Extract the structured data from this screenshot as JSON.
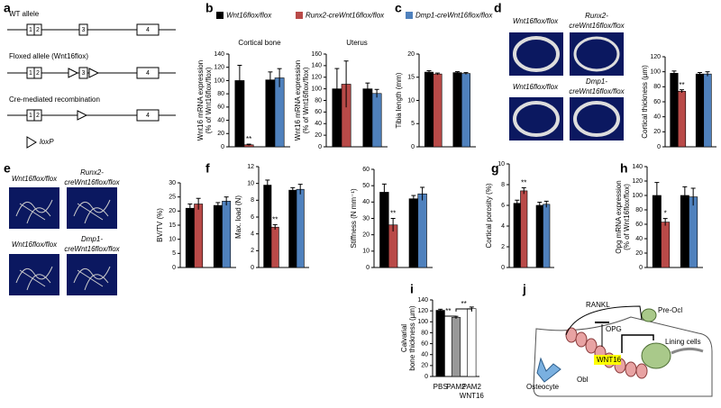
{
  "panels": [
    "a",
    "b",
    "c",
    "d",
    "e",
    "f",
    "g",
    "h",
    "i",
    "j"
  ],
  "legend": [
    {
      "name": "Wnt16flox/flox",
      "color": "#000000"
    },
    {
      "name": "Runx2-creWnt16flox/flox",
      "color": "#b94a48"
    },
    {
      "name": "Dmp1-creWnt16flox/flox",
      "color": "#4f81bd"
    }
  ],
  "allele_diagram": {
    "rows": [
      "WT allele",
      "Floxed allele (Wnt16flox)",
      "Cre-mediated recombination"
    ],
    "exons": [
      "1",
      "2",
      "3",
      "4"
    ],
    "legend": "loxP"
  },
  "images": {
    "d": [
      "Wnt16flox/flox",
      "Runx2-",
      "creWnt16flox/flox",
      "Wnt16flox/flox",
      "Dmp1-",
      "creWnt16flox/flox"
    ],
    "e": [
      "Wnt16flox/flox",
      "Runx2-",
      "creWnt16flox/flox",
      "Wnt16flox/flox",
      "Dmp1-",
      "creWnt16flox/flox"
    ]
  },
  "mechanism": {
    "rankl": "RANKL",
    "opg": "OPG",
    "pre_ocl": "Pre-Ocl",
    "lining": "Lining cells",
    "osteocyte": "Osteocyte",
    "obl": "Obl",
    "wnt16": "WNT16"
  },
  "chart_data": [
    {
      "type": "bar",
      "title": "Cortical bone",
      "ylabel": [
        "Wnt16 mRNA expression",
        "(% of Wnt16flox/flox)"
      ],
      "categories": [
        null,
        null
      ],
      "ylim": [
        0,
        140
      ],
      "yticks": [
        0,
        20,
        40,
        60,
        80,
        100,
        120,
        140
      ],
      "series": [
        {
          "values": [
            100,
            101
          ],
          "errors": [
            23,
            12
          ],
          "significance": [
            null,
            null
          ]
        },
        {
          "values": [
            3,
            null
          ],
          "errors": [
            1,
            null
          ],
          "significance": [
            "**",
            null
          ]
        },
        {
          "values": [
            null,
            104
          ],
          "errors": [
            null,
            14
          ],
          "significance": [
            null,
            null
          ]
        }
      ]
    },
    {
      "type": "bar",
      "title": "Uterus",
      "ylabel": [
        "Wnt16 mRNA expression",
        "(% of Wnt16flox/flox)"
      ],
      "categories": [
        null,
        null
      ],
      "ylim": [
        0,
        160
      ],
      "yticks": [
        0,
        20,
        40,
        60,
        80,
        100,
        120,
        140,
        160
      ],
      "series": [
        {
          "values": [
            100,
            100
          ],
          "errors": [
            35,
            10
          ],
          "significance": [
            null,
            null
          ]
        },
        {
          "values": [
            108,
            null
          ],
          "errors": [
            40,
            null
          ],
          "significance": [
            null,
            null
          ]
        },
        {
          "values": [
            null,
            92
          ],
          "errors": [
            null,
            7
          ],
          "significance": [
            null,
            null
          ]
        }
      ]
    },
    {
      "type": "bar",
      "ylabel": [
        "Tibia length (mm)"
      ],
      "categories": [
        null,
        null
      ],
      "ylim": [
        0,
        20
      ],
      "yticks": [
        0,
        5,
        10,
        15,
        20
      ],
      "series": [
        {
          "values": [
            16.1,
            16.0
          ],
          "errors": [
            0.3,
            0.2
          ],
          "significance": [
            null,
            null
          ]
        },
        {
          "values": [
            15.7,
            null
          ],
          "errors": [
            0.2,
            null
          ],
          "significance": [
            null,
            null
          ]
        },
        {
          "values": [
            null,
            15.8
          ],
          "errors": [
            null,
            0.2
          ],
          "significance": [
            null,
            null
          ]
        }
      ]
    },
    {
      "type": "bar",
      "ylabel": [
        "Cortical thickness (µm)"
      ],
      "categories": [
        null,
        null
      ],
      "ylim": [
        0,
        120
      ],
      "yticks": [
        0,
        20,
        40,
        60,
        80,
        100,
        120
      ],
      "series": [
        {
          "values": [
            98,
            97
          ],
          "errors": [
            3,
            2
          ],
          "significance": [
            null,
            null
          ]
        },
        {
          "values": [
            74,
            null
          ],
          "errors": [
            2,
            null
          ],
          "significance": [
            "**",
            null
          ]
        },
        {
          "values": [
            null,
            97
          ],
          "errors": [
            null,
            3
          ],
          "significance": [
            null,
            null
          ]
        }
      ]
    },
    {
      "type": "bar",
      "ylabel": [
        "BV/TV (%)"
      ],
      "categories": [
        null,
        null
      ],
      "ylim": [
        0,
        30
      ],
      "yticks": [
        0,
        5,
        10,
        15,
        20,
        25,
        30
      ],
      "series": [
        {
          "values": [
            21,
            22
          ],
          "errors": [
            1.5,
            1
          ],
          "significance": [
            null,
            null
          ]
        },
        {
          "values": [
            22.5,
            null
          ],
          "errors": [
            2,
            null
          ],
          "significance": [
            null,
            null
          ]
        },
        {
          "values": [
            null,
            23.5
          ],
          "errors": [
            null,
            1.5
          ],
          "significance": [
            null,
            null
          ]
        }
      ]
    },
    {
      "type": "bar",
      "ylabel": [
        "Max. load (N)"
      ],
      "categories": [
        null,
        null
      ],
      "ylim": [
        0,
        12
      ],
      "yticks": [
        0,
        2,
        4,
        6,
        8,
        10,
        12
      ],
      "series": [
        {
          "values": [
            9.8,
            9.2
          ],
          "errors": [
            0.6,
            0.3
          ],
          "significance": [
            null,
            null
          ]
        },
        {
          "values": [
            4.8,
            null
          ],
          "errors": [
            0.3,
            null
          ],
          "significance": [
            "**",
            null
          ]
        },
        {
          "values": [
            null,
            9.3
          ],
          "errors": [
            null,
            0.6
          ],
          "significance": [
            null,
            null
          ]
        }
      ]
    },
    {
      "type": "bar",
      "ylabel": [
        "Stiffness (N mm⁻¹)"
      ],
      "categories": [
        null,
        null
      ],
      "ylim": [
        0,
        60
      ],
      "yticks": [
        0,
        10,
        20,
        30,
        40,
        50,
        60
      ],
      "series": [
        {
          "values": [
            46,
            42
          ],
          "errors": [
            5,
            2
          ],
          "significance": [
            null,
            null
          ]
        },
        {
          "values": [
            26,
            null
          ],
          "errors": [
            4,
            null
          ],
          "significance": [
            "**",
            null
          ]
        },
        {
          "values": [
            null,
            45
          ],
          "errors": [
            null,
            4
          ],
          "significance": [
            null,
            null
          ]
        }
      ]
    },
    {
      "type": "bar",
      "ylabel": [
        "Cortical porosity (%)"
      ],
      "categories": [
        null,
        null
      ],
      "ylim": [
        0,
        10
      ],
      "yticks": [
        0,
        2,
        4,
        6,
        8,
        10
      ],
      "series": [
        {
          "values": [
            6.2,
            6.0
          ],
          "errors": [
            0.3,
            0.3
          ],
          "significance": [
            null,
            null
          ]
        },
        {
          "values": [
            7.4,
            null
          ],
          "errors": [
            0.3,
            null
          ],
          "significance": [
            "**",
            null
          ]
        },
        {
          "values": [
            null,
            6.1
          ],
          "errors": [
            null,
            0.3
          ],
          "significance": [
            null,
            null
          ]
        }
      ]
    },
    {
      "type": "bar",
      "ylabel": [
        "Opg mRNA expression",
        "(% of Wnt16flox/flox)"
      ],
      "categories": [
        null,
        null
      ],
      "ylim": [
        0,
        140
      ],
      "yticks": [
        0,
        20,
        40,
        60,
        80,
        100,
        120,
        140
      ],
      "series": [
        {
          "values": [
            100,
            100
          ],
          "errors": [
            18,
            12
          ],
          "significance": [
            null,
            null
          ]
        },
        {
          "values": [
            63,
            null
          ],
          "errors": [
            5,
            null
          ],
          "significance": [
            "*",
            null
          ]
        },
        {
          "values": [
            null,
            98
          ],
          "errors": [
            null,
            12
          ],
          "significance": [
            null,
            null
          ]
        }
      ]
    },
    {
      "type": "bar",
      "ylabel": [
        "Calvarial",
        "bone thickness (µm)"
      ],
      "categories": [
        [
          "PBS"
        ],
        [
          "PAM2"
        ],
        [
          "PAM2",
          "WNT16"
        ]
      ],
      "ylim": [
        0,
        140
      ],
      "yticks": [
        0,
        20,
        40,
        60,
        80,
        100,
        120,
        140
      ],
      "values": [
        121,
        108,
        124
      ],
      "errors": [
        2,
        2,
        3
      ],
      "colors": [
        "#000000",
        "#999999",
        "#ffffff"
      ],
      "brackets": [
        "**",
        "**"
      ]
    }
  ]
}
